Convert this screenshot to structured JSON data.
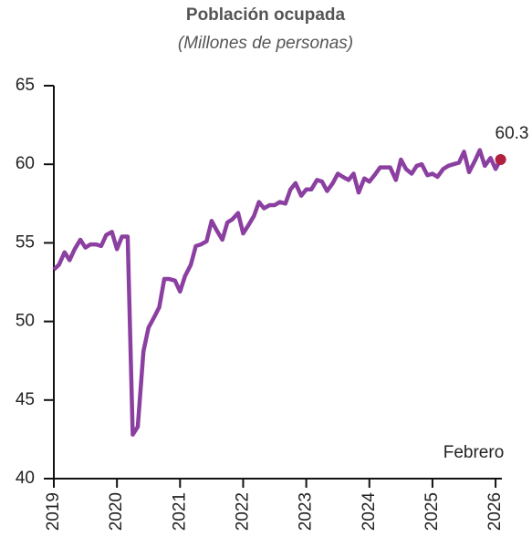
{
  "chart_data": {
    "type": "line",
    "title": "Población ocupada",
    "subtitle": "(Millones de personas)",
    "annotation": "Febrero",
    "x": [
      2019,
      2019.08,
      2019.17,
      2019.25,
      2019.33,
      2019.42,
      2019.5,
      2019.58,
      2019.67,
      2019.75,
      2019.83,
      2019.92,
      2020,
      2020.08,
      2020.17,
      2020.25,
      2020.33,
      2020.42,
      2020.5,
      2020.58,
      2020.67,
      2020.75,
      2020.83,
      2020.92,
      2021,
      2021.08,
      2021.17,
      2021.25,
      2021.33,
      2021.42,
      2021.5,
      2021.58,
      2021.67,
      2021.75,
      2021.83,
      2021.92,
      2022,
      2022.08,
      2022.17,
      2022.25,
      2022.33,
      2022.42,
      2022.5,
      2022.58,
      2022.67,
      2022.75,
      2022.83,
      2022.92,
      2023,
      2023.08,
      2023.17,
      2023.25,
      2023.33,
      2023.42,
      2023.5,
      2023.58,
      2023.67,
      2023.75,
      2023.83,
      2023.92,
      2024,
      2024.08,
      2024.17,
      2024.25,
      2024.33,
      2024.42,
      2024.5,
      2024.58,
      2024.67,
      2024.75,
      2024.83,
      2024.92,
      2025,
      2025.08,
      2025.17,
      2025.25,
      2025.33,
      2025.42,
      2025.5,
      2025.58,
      2025.67,
      2025.75,
      2025.83,
      2025.92,
      2026,
      2026.08
    ],
    "series": [
      {
        "name": "Población ocupada",
        "color": "#8b3fa0",
        "marker_color": "#b0203f",
        "values": [
          53.3,
          53.6,
          54.4,
          53.9,
          54.6,
          55.2,
          54.7,
          54.9,
          54.9,
          54.8,
          55.5,
          55.7,
          54.6,
          55.4,
          55.4,
          42.8,
          43.3,
          48.1,
          49.6,
          50.2,
          50.9,
          52.7,
          52.7,
          52.6,
          51.9,
          52.9,
          53.6,
          54.8,
          54.9,
          55.1,
          56.4,
          55.8,
          55.2,
          56.3,
          56.5,
          56.9,
          55.6,
          56.1,
          56.7,
          57.6,
          57.2,
          57.4,
          57.4,
          57.6,
          57.5,
          58.4,
          58.8,
          58.0,
          58.4,
          58.4,
          59.0,
          58.9,
          58.3,
          58.8,
          59.4,
          59.2,
          59.0,
          59.4,
          58.2,
          59.1,
          58.9,
          59.3,
          59.8,
          59.8,
          59.8,
          59.0,
          60.3,
          59.7,
          59.4,
          59.9,
          60.0,
          59.3,
          59.4,
          59.2,
          59.7,
          59.9,
          60.0,
          60.1,
          60.8,
          59.5,
          60.2,
          60.9,
          59.9,
          60.4,
          59.7,
          60.3
        ]
      }
    ],
    "xlim": [
      2019,
      2026.1
    ],
    "xticks": [
      2019,
      2020,
      2021,
      2022,
      2023,
      2024,
      2025,
      2026
    ],
    "ylim": [
      40,
      65
    ],
    "yticks": [
      40,
      45,
      50,
      55,
      60,
      65
    ],
    "grid": false
  }
}
